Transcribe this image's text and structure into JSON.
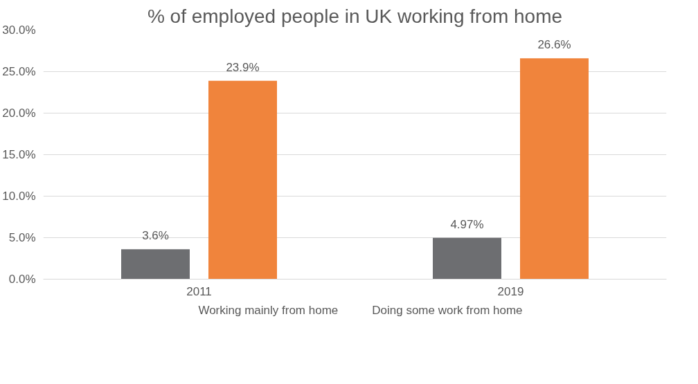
{
  "chart_data": {
    "type": "bar",
    "title": "% of employed people in UK working from home",
    "categories": [
      "2011",
      "2019"
    ],
    "series": [
      {
        "name": "Working mainly from home",
        "color": "#6d6e71",
        "values": [
          3.6,
          4.97
        ],
        "value_labels": [
          "3.6%",
          "4.97%"
        ]
      },
      {
        "name": "Doing some work from home",
        "color": "#f0843c",
        "values": [
          23.9,
          26.6
        ],
        "value_labels": [
          "23.9%",
          "26.6%"
        ]
      }
    ],
    "ylim": [
      0,
      30
    ],
    "yticks": [
      {
        "value": 0,
        "label": "0.0%"
      },
      {
        "value": 5,
        "label": "5.0%"
      },
      {
        "value": 10,
        "label": "10.0%"
      },
      {
        "value": 15,
        "label": "15.0%"
      },
      {
        "value": 20,
        "label": "20.0%"
      },
      {
        "value": 25,
        "label": "25.0%"
      },
      {
        "value": 30,
        "label": "30.0%"
      }
    ],
    "grid": "y",
    "legend": "bottom"
  }
}
